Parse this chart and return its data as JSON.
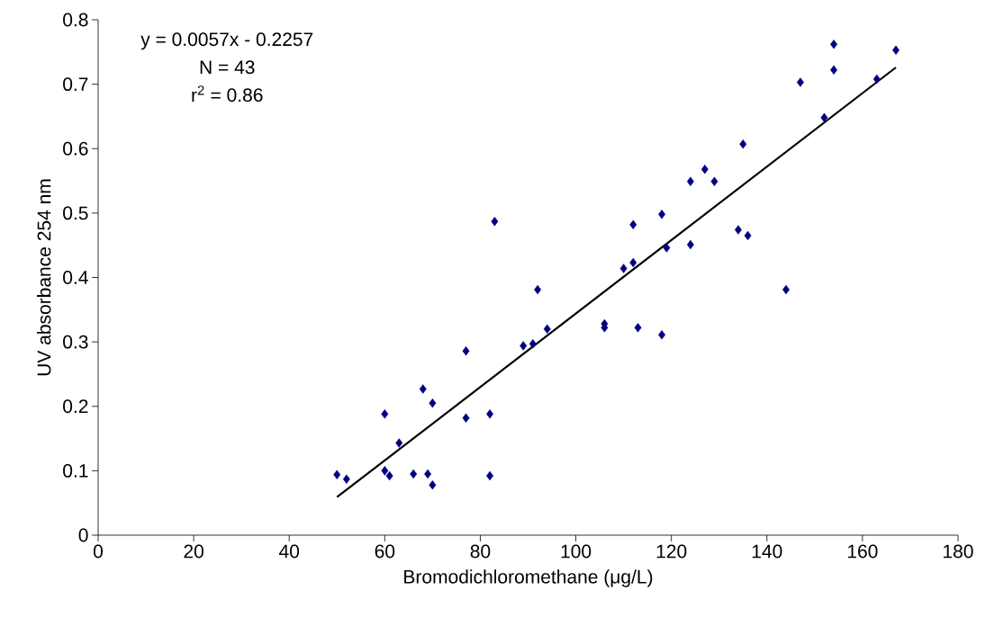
{
  "chart_data": {
    "type": "scatter",
    "xlabel": "Bromodichloromethane (μg/L)",
    "ylabel": "UV absorbance 254 nm",
    "annotations": [
      "y = 0.0057x - 0.2257",
      "N = 43",
      "r$^{2}$ = 0.86"
    ],
    "xlim": [
      0,
      180
    ],
    "xticks": [
      0,
      20,
      40,
      60,
      80,
      100,
      120,
      140,
      160,
      180
    ],
    "ylim": [
      0,
      0.8
    ],
    "yticks": [
      0,
      0.1,
      0.2,
      0.3,
      0.4,
      0.5,
      0.6,
      0.7,
      0.8
    ],
    "grid": false,
    "series": [
      {
        "color": "#000080",
        "marker": "diamond",
        "x": [
          50,
          52,
          60,
          60,
          61,
          63,
          66,
          68,
          69,
          70,
          70,
          77,
          77,
          82,
          82,
          83,
          89,
          91,
          92,
          94,
          106,
          106,
          110,
          112,
          112,
          113,
          118,
          118,
          119,
          124,
          124,
          127,
          129,
          134,
          135,
          136,
          144,
          147,
          152,
          154,
          154,
          163,
          167
        ],
        "values": [
          0.094,
          0.087,
          0.188,
          0.1,
          0.092,
          0.143,
          0.095,
          0.227,
          0.095,
          0.205,
          0.078,
          0.286,
          0.182,
          0.188,
          0.092,
          0.487,
          0.294,
          0.297,
          0.381,
          0.32,
          0.328,
          0.322,
          0.414,
          0.482,
          0.423,
          0.322,
          0.498,
          0.311,
          0.446,
          0.549,
          0.451,
          0.568,
          0.549,
          0.474,
          0.607,
          0.465,
          0.381,
          0.703,
          0.648,
          0.762,
          0.722,
          0.708,
          0.753
        ]
      },
      {
        "type": "line",
        "color": "#000000",
        "marker": "none",
        "line_style": "solid",
        "x": [
          50,
          167
        ],
        "values": [
          0.059,
          0.726
        ]
      }
    ]
  }
}
